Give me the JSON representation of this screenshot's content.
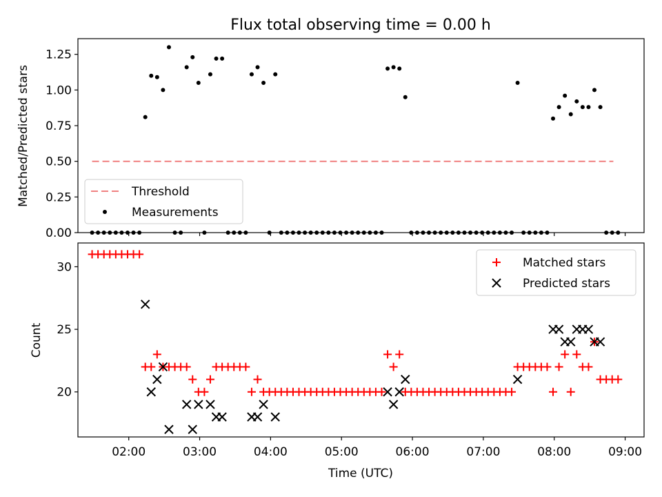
{
  "title": "Flux total observing time = 0.00 h",
  "chart_data": [
    {
      "type": "scatter",
      "ylabel": "Matched/Predicted stars",
      "ylim": [
        0,
        1.36
      ],
      "yticks": [
        0.0,
        0.25,
        0.5,
        0.75,
        1.0,
        1.25
      ],
      "ytick_labels": [
        "0.00",
        "0.25",
        "0.50",
        "0.75",
        "1.00",
        "1.25"
      ],
      "xlim": [
        "01:17",
        "09:16"
      ],
      "xticks": [
        "02:00",
        "03:00",
        "04:00",
        "05:00",
        "06:00",
        "07:00",
        "08:00",
        "09:00"
      ],
      "legend_position": "lower-left",
      "threshold": {
        "name": "Threshold",
        "x": [
          "01:29",
          "08:50"
        ],
        "y": 0.5,
        "color": "#f08080"
      },
      "measurements": {
        "name": "Measurements",
        "color": "#000000",
        "points": [
          [
            "01:29",
            0
          ],
          [
            "01:34",
            0
          ],
          [
            "01:39",
            0
          ],
          [
            "01:44",
            0
          ],
          [
            "01:49",
            0
          ],
          [
            "01:54",
            0
          ],
          [
            "01:59",
            0
          ],
          [
            "02:04",
            0
          ],
          [
            "02:09",
            0
          ],
          [
            "02:14",
            0.81
          ],
          [
            "02:19",
            1.1
          ],
          [
            "02:24",
            1.09
          ],
          [
            "02:29",
            1.0
          ],
          [
            "02:34",
            1.3
          ],
          [
            "02:39",
            0
          ],
          [
            "02:44",
            0
          ],
          [
            "02:49",
            1.16
          ],
          [
            "02:54",
            1.23
          ],
          [
            "02:59",
            1.05
          ],
          [
            "03:04",
            0
          ],
          [
            "03:09",
            1.11
          ],
          [
            "03:14",
            1.22
          ],
          [
            "03:19",
            1.22
          ],
          [
            "03:24",
            0
          ],
          [
            "03:29",
            0
          ],
          [
            "03:34",
            0
          ],
          [
            "03:39",
            0
          ],
          [
            "03:44",
            1.11
          ],
          [
            "03:49",
            1.16
          ],
          [
            "03:54",
            1.05
          ],
          [
            "03:59",
            0
          ],
          [
            "04:04",
            1.11
          ],
          [
            "04:09",
            0
          ],
          [
            "04:14",
            0
          ],
          [
            "04:19",
            0
          ],
          [
            "04:24",
            0
          ],
          [
            "04:29",
            0
          ],
          [
            "04:34",
            0
          ],
          [
            "04:39",
            0
          ],
          [
            "04:44",
            0
          ],
          [
            "04:49",
            0
          ],
          [
            "04:54",
            0
          ],
          [
            "04:59",
            0
          ],
          [
            "05:04",
            0
          ],
          [
            "05:09",
            0
          ],
          [
            "05:14",
            0
          ],
          [
            "05:19",
            0
          ],
          [
            "05:24",
            0
          ],
          [
            "05:29",
            0
          ],
          [
            "05:34",
            0
          ],
          [
            "05:39",
            1.15
          ],
          [
            "05:44",
            1.16
          ],
          [
            "05:49",
            1.15
          ],
          [
            "05:54",
            0.95
          ],
          [
            "05:59",
            0
          ],
          [
            "06:04",
            0
          ],
          [
            "06:09",
            0
          ],
          [
            "06:14",
            0
          ],
          [
            "06:19",
            0
          ],
          [
            "06:24",
            0
          ],
          [
            "06:29",
            0
          ],
          [
            "06:34",
            0
          ],
          [
            "06:39",
            0
          ],
          [
            "06:44",
            0
          ],
          [
            "06:49",
            0
          ],
          [
            "06:54",
            0
          ],
          [
            "06:59",
            0
          ],
          [
            "07:04",
            0
          ],
          [
            "07:09",
            0
          ],
          [
            "07:14",
            0
          ],
          [
            "07:19",
            0
          ],
          [
            "07:24",
            0
          ],
          [
            "07:29",
            1.05
          ],
          [
            "07:34",
            0
          ],
          [
            "07:39",
            0
          ],
          [
            "07:44",
            0
          ],
          [
            "07:49",
            0
          ],
          [
            "07:54",
            0
          ],
          [
            "07:59",
            0.8
          ],
          [
            "08:04",
            0.88
          ],
          [
            "08:09",
            0.96
          ],
          [
            "08:14",
            0.83
          ],
          [
            "08:19",
            0.92
          ],
          [
            "08:24",
            0.88
          ],
          [
            "08:29",
            0.88
          ],
          [
            "08:34",
            1.0
          ],
          [
            "08:39",
            0.88
          ],
          [
            "08:44",
            0
          ],
          [
            "08:49",
            0
          ],
          [
            "08:54",
            0
          ]
        ]
      }
    },
    {
      "type": "scatter",
      "xlabel": "Time (UTC)",
      "ylabel": "Count",
      "ylim": [
        16.4,
        31.9
      ],
      "yticks": [
        20,
        25,
        30
      ],
      "ytick_labels": [
        "20",
        "25",
        "30"
      ],
      "xlim": [
        "01:17",
        "09:16"
      ],
      "xticks": [
        "02:00",
        "03:00",
        "04:00",
        "05:00",
        "06:00",
        "07:00",
        "08:00",
        "09:00"
      ],
      "xtick_labels": [
        "02:00",
        "03:00",
        "04:00",
        "05:00",
        "06:00",
        "07:00",
        "08:00",
        "09:00"
      ],
      "legend_position": "upper-right",
      "series": [
        {
          "name": "Matched stars",
          "marker": "plus",
          "color": "#ff0000",
          "points": [
            [
              "01:29",
              31
            ],
            [
              "01:34",
              31
            ],
            [
              "01:39",
              31
            ],
            [
              "01:44",
              31
            ],
            [
              "01:49",
              31
            ],
            [
              "01:54",
              31
            ],
            [
              "01:59",
              31
            ],
            [
              "02:04",
              31
            ],
            [
              "02:09",
              31
            ],
            [
              "02:14",
              22
            ],
            [
              "02:19",
              22
            ],
            [
              "02:24",
              23
            ],
            [
              "02:29",
              22
            ],
            [
              "02:34",
              22
            ],
            [
              "02:39",
              22
            ],
            [
              "02:44",
              22
            ],
            [
              "02:49",
              22
            ],
            [
              "02:54",
              21
            ],
            [
              "02:59",
              20
            ],
            [
              "03:04",
              20
            ],
            [
              "03:09",
              21
            ],
            [
              "03:14",
              22
            ],
            [
              "03:19",
              22
            ],
            [
              "03:24",
              22
            ],
            [
              "03:29",
              22
            ],
            [
              "03:34",
              22
            ],
            [
              "03:39",
              22
            ],
            [
              "03:44",
              20
            ],
            [
              "03:49",
              21
            ],
            [
              "03:54",
              20
            ],
            [
              "03:59",
              20
            ],
            [
              "04:04",
              20
            ],
            [
              "04:09",
              20
            ],
            [
              "04:14",
              20
            ],
            [
              "04:19",
              20
            ],
            [
              "04:24",
              20
            ],
            [
              "04:29",
              20
            ],
            [
              "04:34",
              20
            ],
            [
              "04:39",
              20
            ],
            [
              "04:44",
              20
            ],
            [
              "04:49",
              20
            ],
            [
              "04:54",
              20
            ],
            [
              "04:59",
              20
            ],
            [
              "05:04",
              20
            ],
            [
              "05:09",
              20
            ],
            [
              "05:14",
              20
            ],
            [
              "05:19",
              20
            ],
            [
              "05:24",
              20
            ],
            [
              "05:29",
              20
            ],
            [
              "05:34",
              20
            ],
            [
              "05:39",
              23
            ],
            [
              "05:44",
              22
            ],
            [
              "05:49",
              23
            ],
            [
              "05:54",
              20
            ],
            [
              "05:59",
              20
            ],
            [
              "06:04",
              20
            ],
            [
              "06:09",
              20
            ],
            [
              "06:14",
              20
            ],
            [
              "06:19",
              20
            ],
            [
              "06:24",
              20
            ],
            [
              "06:29",
              20
            ],
            [
              "06:34",
              20
            ],
            [
              "06:39",
              20
            ],
            [
              "06:44",
              20
            ],
            [
              "06:49",
              20
            ],
            [
              "06:54",
              20
            ],
            [
              "06:59",
              20
            ],
            [
              "07:04",
              20
            ],
            [
              "07:09",
              20
            ],
            [
              "07:14",
              20
            ],
            [
              "07:19",
              20
            ],
            [
              "07:24",
              20
            ],
            [
              "07:29",
              22
            ],
            [
              "07:34",
              22
            ],
            [
              "07:39",
              22
            ],
            [
              "07:44",
              22
            ],
            [
              "07:49",
              22
            ],
            [
              "07:54",
              22
            ],
            [
              "07:59",
              20
            ],
            [
              "08:04",
              22
            ],
            [
              "08:09",
              23
            ],
            [
              "08:14",
              20
            ],
            [
              "08:19",
              23
            ],
            [
              "08:24",
              22
            ],
            [
              "08:29",
              22
            ],
            [
              "08:34",
              24
            ],
            [
              "08:39",
              21
            ],
            [
              "08:44",
              21
            ],
            [
              "08:49",
              21
            ],
            [
              "08:54",
              21
            ]
          ]
        },
        {
          "name": "Predicted stars",
          "marker": "x",
          "color": "#000000",
          "points": [
            [
              "02:14",
              27
            ],
            [
              "02:19",
              20
            ],
            [
              "02:24",
              21
            ],
            [
              "02:29",
              22
            ],
            [
              "02:34",
              17
            ],
            [
              "02:49",
              19
            ],
            [
              "02:54",
              17
            ],
            [
              "02:59",
              19
            ],
            [
              "03:09",
              19
            ],
            [
              "03:14",
              18
            ],
            [
              "03:19",
              18
            ],
            [
              "03:44",
              18
            ],
            [
              "03:49",
              18
            ],
            [
              "03:54",
              19
            ],
            [
              "04:04",
              18
            ],
            [
              "05:39",
              20
            ],
            [
              "05:44",
              19
            ],
            [
              "05:49",
              20
            ],
            [
              "05:54",
              21
            ],
            [
              "07:29",
              21
            ],
            [
              "07:59",
              25
            ],
            [
              "08:04",
              25
            ],
            [
              "08:09",
              24
            ],
            [
              "08:14",
              24
            ],
            [
              "08:19",
              25
            ],
            [
              "08:24",
              25
            ],
            [
              "08:29",
              25
            ],
            [
              "08:34",
              24
            ],
            [
              "08:39",
              24
            ]
          ]
        }
      ]
    }
  ]
}
